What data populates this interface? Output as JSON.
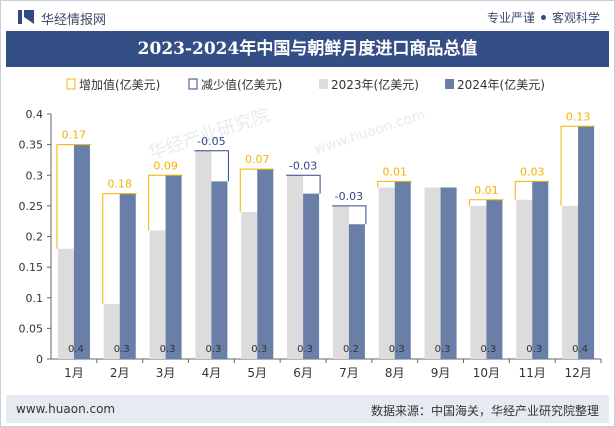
{
  "header": {
    "brand": "华经情报网",
    "tagline_left": "专业严谨",
    "tagline_right": "客观科学"
  },
  "title": "2023-2024年中国与朝鲜月度进口商品总值",
  "watermark": "华经产业研究院",
  "watermark_url": "www.huaon.com",
  "footer": {
    "site": "www.huaon.com",
    "source": "数据来源：中国海关，华经产业研究院整理"
  },
  "colors": {
    "bar2023": "#dcdcdc",
    "bar2024": "#6a7fa8",
    "increase": "#f0b400",
    "decrease": "#2f4a86",
    "title_bg": "#344f86"
  },
  "chart_data": {
    "type": "bar",
    "categories": [
      "1月",
      "2月",
      "3月",
      "4月",
      "5月",
      "6月",
      "7月",
      "8月",
      "9月",
      "10月",
      "11月",
      "12月"
    ],
    "series": [
      {
        "name": "2023年(亿美元)",
        "values": [
          0.18,
          0.09,
          0.21,
          0.34,
          0.24,
          0.3,
          0.25,
          0.28,
          0.28,
          0.25,
          0.26,
          0.25
        ]
      },
      {
        "name": "2024年(亿美元)",
        "values": [
          0.35,
          0.27,
          0.3,
          0.29,
          0.31,
          0.27,
          0.22,
          0.29,
          0.28,
          0.26,
          0.29,
          0.38
        ]
      }
    ],
    "increase_label": "增加值(亿美元)",
    "decrease_label": "减少值(亿美元)",
    "change_labels": [
      "0.17",
      "0.18",
      "0.09",
      "-0.05",
      "0.07",
      "-0.03",
      "-0.03",
      "0.01",
      "",
      "0.01",
      "0.03",
      "0.13"
    ],
    "bar_labels": [
      "0.4",
      "0.3",
      "0.3",
      "0.3",
      "0.3",
      "0.3",
      "0.2",
      "0.3",
      "0.3",
      "0.3",
      "0.3",
      "0.4"
    ],
    "yticks": [
      "0",
      "0.05",
      "0.1",
      "0.15",
      "0.2",
      "0.25",
      "0.3",
      "0.35",
      "0.4"
    ],
    "ylim": [
      0,
      0.4
    ],
    "legend_position": "top"
  }
}
